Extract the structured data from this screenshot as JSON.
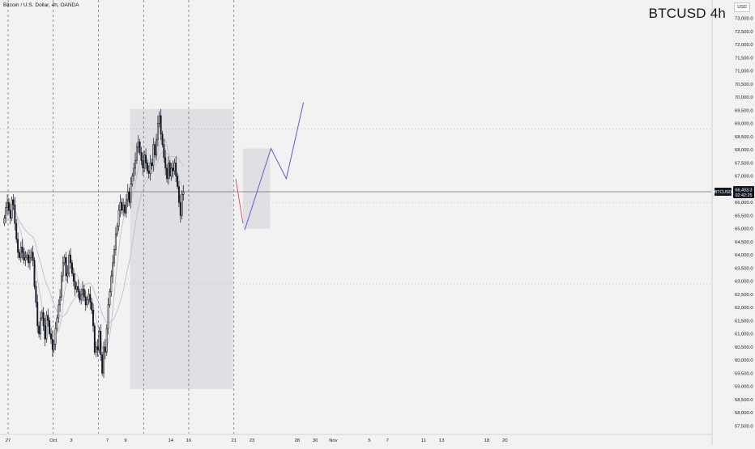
{
  "header": {
    "pane_title": "Bitcoin / U.S. Dollar, 4h, OANDA",
    "chart_title": "BTCUSD 4h",
    "currency": "USD"
  },
  "price_badge": {
    "symbol": "BTCUSD",
    "price": "66,403.3",
    "countdown": "02:42:25"
  },
  "colors": {
    "background": "#f3f1f1",
    "up": "#ffffff",
    "down": "#131722",
    "box": "#d9dadf",
    "projection": "#5b61c4",
    "red_line": "#d14b5b",
    "ma": "#b9b9c4"
  },
  "chart_data": {
    "type": "candlestick",
    "title": "BTCUSD 4h",
    "subtitle": "Bitcoin / U.S. Dollar, 4h, OANDA",
    "ylim": [
      57200,
      73700
    ],
    "y_ticks": [
      57500,
      58000,
      58500,
      59000,
      59500,
      60000,
      60500,
      61000,
      61500,
      62000,
      62500,
      63000,
      63500,
      64000,
      64500,
      65000,
      65500,
      66000,
      66500,
      67000,
      67500,
      68000,
      68500,
      69000,
      69500,
      70000,
      70500,
      71000,
      71500,
      72000,
      72500,
      73000
    ],
    "y_tick_labels": [
      "57,500.0",
      "58,000.0",
      "58,500.0",
      "59,000.0",
      "59,500.0",
      "60,000.0",
      "60,500.0",
      "61,000.0",
      "61,500.0",
      "62,000.0",
      "62,500.0",
      "63,000.0",
      "63,500.0",
      "64,000.0",
      "64,500.0",
      "65,000.0",
      "65,500.0",
      "66,000.0",
      "66,500.0",
      "67,000.0",
      "67,500.0",
      "68,000.0",
      "68,500.0",
      "69,000.0",
      "69,500.0",
      "70,000.0",
      "70,500.0",
      "71,000.0",
      "71,500.0",
      "72,000.0",
      "72,500.0",
      "73,000.0"
    ],
    "x_ticks": [
      {
        "label": "27",
        "day": -4
      },
      {
        "label": "Oct",
        "day": 1
      },
      {
        "label": "3",
        "day": 3
      },
      {
        "label": "7",
        "day": 7
      },
      {
        "label": "9",
        "day": 9
      },
      {
        "label": "14",
        "day": 14
      },
      {
        "label": "16",
        "day": 16
      },
      {
        "label": "21",
        "day": 21
      },
      {
        "label": "23",
        "day": 23
      },
      {
        "label": "28",
        "day": 28
      },
      {
        "label": "30",
        "day": 30
      },
      {
        "label": "Nov",
        "day": 32
      },
      {
        "label": "5",
        "day": 36
      },
      {
        "label": "7",
        "day": 38
      },
      {
        "label": "11",
        "day": 42
      },
      {
        "label": "13",
        "day": 44
      },
      {
        "label": "18",
        "day": 49
      },
      {
        "label": "20",
        "day": 51
      }
    ],
    "current_price": 66403.3,
    "week_separators_day": [
      -4,
      1,
      6,
      11,
      16,
      21
    ],
    "candles_day_start": -4.5,
    "candles_per_day": 6,
    "close": [
      65400,
      65800,
      66000,
      65700,
      65400,
      66100,
      65900,
      65200,
      64600,
      64100,
      63900,
      64300,
      64100,
      63800,
      63900,
      64000,
      63700,
      63900,
      64100,
      63800,
      62800,
      62200,
      61300,
      61000,
      61600,
      61800,
      61300,
      60800,
      61700,
      61500,
      61000,
      60800,
      60400,
      60600,
      61200,
      61600,
      62100,
      62400,
      63200,
      63700,
      63900,
      63200,
      63300,
      64000,
      63700,
      63300,
      63000,
      62700,
      62800,
      62600,
      62300,
      62500,
      62700,
      62400,
      62100,
      62300,
      62500,
      62200,
      61900,
      61300,
      60300,
      60500,
      60400,
      61100,
      60200,
      59500,
      60500,
      60300,
      61200,
      62100,
      62600,
      63200,
      63700,
      64200,
      64800,
      65100,
      65700,
      66000,
      65700,
      65900,
      65600,
      66100,
      66400,
      66000,
      66700,
      67000,
      67300,
      67600,
      68100,
      68300,
      67900,
      67600,
      67300,
      67800,
      67500,
      67200,
      67100,
      67500,
      67400,
      68200,
      67800,
      68400,
      69000,
      69300,
      68600,
      68200,
      67700,
      67300,
      66900,
      67500,
      67000,
      67300,
      67200,
      67500,
      67000,
      66600,
      66000,
      65500,
      66300,
      66403.3
    ],
    "box_1": {
      "day_start": 9.5,
      "day_end": 20.9,
      "y_top": 69550,
      "y_bottom": 58900
    },
    "box_2": {
      "day_start": 22.0,
      "day_end": 25.0,
      "y_top": 68050,
      "y_bottom": 65000
    },
    "red_line": [
      {
        "day": 21.2,
        "y": 66900
      },
      {
        "day": 22.0,
        "y": 65200
      }
    ],
    "projection_path": [
      {
        "day": 22.2,
        "y": 64950
      },
      {
        "day": 25.1,
        "y": 68050
      },
      {
        "day": 26.8,
        "y": 66900
      },
      {
        "day": 28.7,
        "y": 69800
      }
    ],
    "dotted_levels": [
      68800,
      62900,
      66000
    ]
  }
}
